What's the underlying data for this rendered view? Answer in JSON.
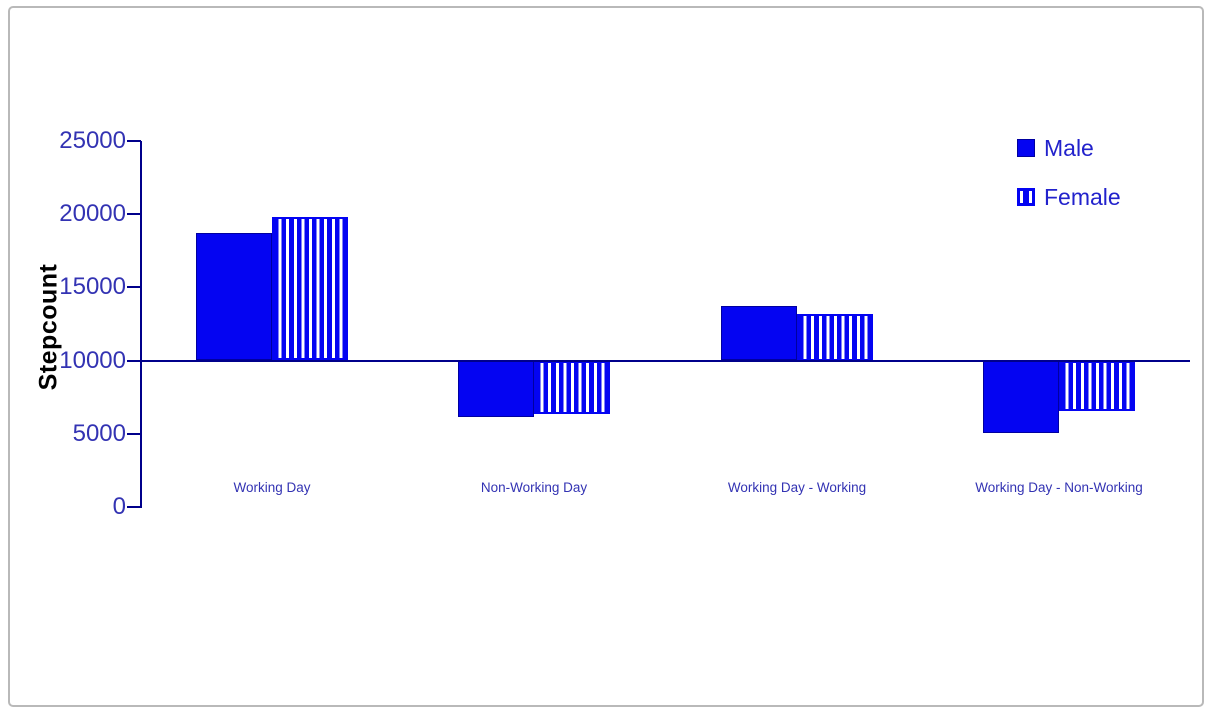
{
  "frame": {
    "background": "#ffffff",
    "border_color": "#b9b9b9"
  },
  "chart_data": {
    "type": "bar",
    "title": "",
    "xlabel": "",
    "ylabel": "Stepcount",
    "categories": [
      "Working Day",
      "Non-Working Day",
      "Working Day - Working",
      "Working Day - Non-Working"
    ],
    "series": [
      {
        "name": "Male",
        "pattern": "solid",
        "values": [
          18700,
          6200,
          13700,
          5100
        ]
      },
      {
        "name": "Female",
        "pattern": "vertical-stripes",
        "values": [
          19800,
          6400,
          13200,
          6600
        ]
      }
    ],
    "ylim": [
      0,
      25000
    ],
    "yticks": [
      0,
      5000,
      10000,
      15000,
      20000,
      25000
    ],
    "baseline": 10000,
    "grid": false,
    "legend_position": "top-right",
    "colors": {
      "bar_fill": "#0404f2",
      "bar_outline": "#0000a0",
      "stripe_background": "#ffffff",
      "axis": "#00008b",
      "tick_text": "#3333b3",
      "category_text": "#3333b3",
      "legend_text": "#2222cc",
      "ylabel_text": "#2b2bb0"
    }
  }
}
